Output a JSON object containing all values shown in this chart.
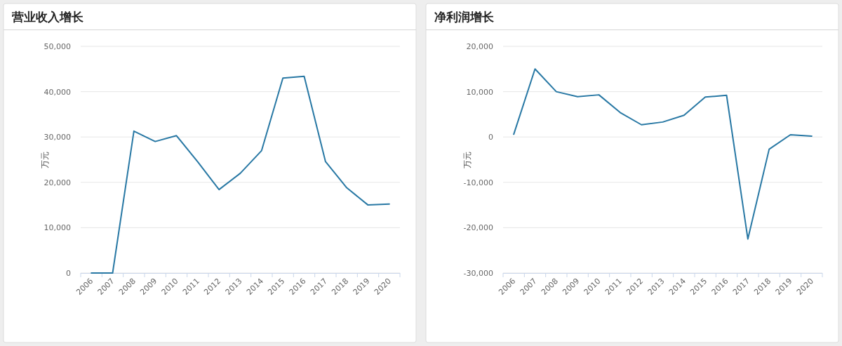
{
  "chart_data": [
    {
      "type": "line",
      "title": "营业收入增长",
      "ylabel": "万元",
      "categories": [
        "2006",
        "2007",
        "2008",
        "2009",
        "2010",
        "2011",
        "2012",
        "2013",
        "2014",
        "2015",
        "2016",
        "2017",
        "2018",
        "2019",
        "2020"
      ],
      "series": [
        {
          "color": "#2878a4",
          "values": [
            0,
            0,
            31300,
            29000,
            30300,
            24500,
            18400,
            22000,
            27000,
            43000,
            43400,
            24600,
            18800,
            15000,
            15200
          ]
        }
      ],
      "ylim": [
        0,
        50000
      ],
      "yticks": [
        0,
        {
          "value": 10000,
          "label": "10,000"
        },
        {
          "value": 20000,
          "label": "20,000"
        },
        {
          "value": 30000,
          "label": "30,000"
        },
        {
          "value": 40000,
          "label": "40,000"
        },
        {
          "value": 50000,
          "label": "50,000"
        }
      ],
      "grid": "y",
      "marker": "none",
      "line_style": "solid"
    },
    {
      "type": "line",
      "title": "净利润增长",
      "ylabel": "万元",
      "categories": [
        "2006",
        "2007",
        "2008",
        "2009",
        "2010",
        "2011",
        "2012",
        "2013",
        "2014",
        "2015",
        "2016",
        "2017",
        "2018",
        "2019",
        "2020"
      ],
      "series": [
        {
          "color": "#2878a4",
          "values": [
            600,
            15000,
            10000,
            8900,
            9300,
            5400,
            2700,
            3300,
            4800,
            8800,
            9200,
            -22500,
            -2700,
            500,
            200
          ]
        }
      ],
      "ylim": [
        -30000,
        20000
      ],
      "yticks": [
        {
          "value": -30000,
          "label": "-30,000"
        },
        {
          "value": -20000,
          "label": "-20,000"
        },
        {
          "value": -10000,
          "label": "-10,000"
        },
        0,
        {
          "value": 10000,
          "label": "10,000"
        },
        {
          "value": 20000,
          "label": "20,000"
        }
      ],
      "grid": "y",
      "marker": "none",
      "line_style": "solid"
    }
  ]
}
